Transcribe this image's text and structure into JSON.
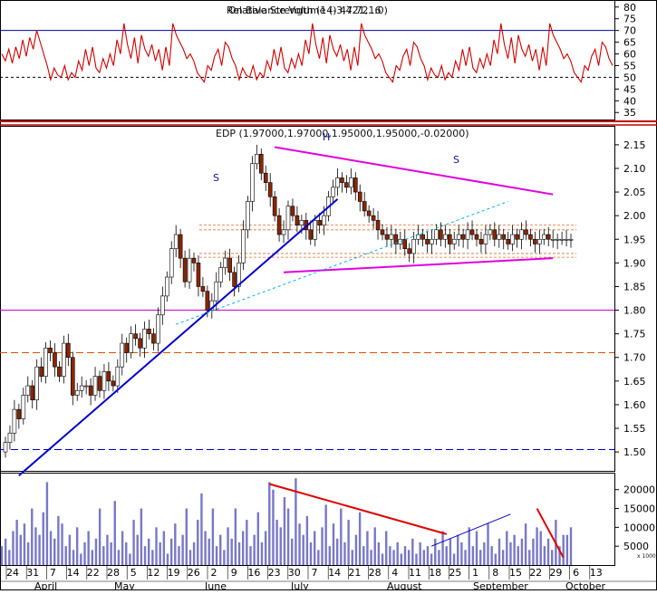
{
  "chart_data": [
    {
      "panel": "rsi",
      "type": "line",
      "title": "Relative Strength (14) 47.7216",
      "title_overlay": "On Balance Volume (-3,421,...0)",
      "y_ticks": [
        35,
        40,
        45,
        50,
        55,
        60,
        65,
        70,
        75,
        80
      ],
      "ylim": [
        32,
        83
      ],
      "reference_lines": [
        70,
        50
      ],
      "line_color": "#d00000",
      "series": [
        {
          "values": [
            60,
            57,
            62,
            56,
            63,
            58,
            66,
            59,
            67,
            62,
            70,
            65,
            60,
            55,
            49,
            54,
            51,
            50,
            55,
            49,
            52,
            50,
            57,
            53,
            62,
            55,
            63,
            54,
            52,
            58,
            54,
            60,
            55,
            66,
            60,
            73,
            64,
            58,
            67,
            56,
            68,
            62,
            59,
            64,
            57,
            62,
            53,
            63,
            55,
            73,
            68,
            65,
            62,
            58,
            60,
            57,
            52,
            50,
            48,
            55,
            53,
            59,
            62,
            55,
            65,
            63,
            58,
            55,
            49,
            54,
            51,
            50,
            55,
            49,
            52,
            50,
            57,
            53,
            62,
            55,
            63,
            54,
            52,
            58,
            54,
            60,
            55,
            66,
            60,
            73,
            64,
            58,
            67,
            56,
            68,
            62,
            59,
            64,
            57,
            62,
            53,
            63,
            55,
            73,
            68,
            65,
            62,
            58,
            60,
            57,
            52,
            50,
            48,
            55,
            53,
            59,
            62,
            55,
            65,
            63,
            58,
            55,
            49,
            54,
            51,
            50,
            55,
            49,
            52,
            50,
            57,
            53,
            62,
            55,
            63,
            54,
            52,
            58,
            54,
            60,
            55,
            66,
            60,
            73,
            64,
            58,
            67,
            56,
            68,
            62,
            59,
            64,
            57,
            62,
            53,
            63,
            55,
            73,
            68,
            65,
            62,
            58,
            60,
            57,
            52,
            50,
            48,
            55,
            53,
            59,
            62,
            55,
            65,
            63,
            58,
            55
          ]
        }
      ]
    },
    {
      "panel": "price",
      "type": "candlestick",
      "title": "EDP (1.97000,1.97000,1.95000,1.95000,-0.02000)",
      "y_ticks": [
        1.5,
        1.55,
        1.6,
        1.65,
        1.7,
        1.75,
        1.8,
        1.85,
        1.9,
        1.95,
        2.0,
        2.05,
        2.1,
        2.15
      ],
      "ylim": [
        1.46,
        2.19
      ],
      "annotations": [
        "S",
        "H",
        "S"
      ],
      "horizontal_lines": [
        {
          "y": 1.8,
          "color": "#cc00cc",
          "style": "solid"
        },
        {
          "y": 1.71,
          "color": "#e05000",
          "style": "dashed"
        },
        {
          "y": 1.505,
          "color": "#0000cc",
          "style": "dashed"
        }
      ],
      "trendlines": [
        {
          "from": [
            3,
            1.45
          ],
          "to": [
            74,
            2.035
          ],
          "color": "#0000cc"
        },
        {
          "from": [
            60,
            2.145
          ],
          "to": [
            122,
            2.045
          ],
          "color": "#e000e0"
        },
        {
          "from": [
            62,
            1.88
          ],
          "to": [
            122,
            1.91
          ],
          "color": "#e000e0"
        },
        {
          "from": [
            38,
            1.77
          ],
          "to": [
            112,
            2.03
          ],
          "color": "#00aaee",
          "style": "dashed"
        }
      ],
      "channel_lines": [
        1.97,
        1.98,
        1.912,
        1.92
      ],
      "up_color": "#ffffff",
      "down_color": "#8b2500",
      "series": [
        {
          "name": "EDP",
          "close": [
            1.52,
            1.54,
            1.59,
            1.57,
            1.62,
            1.64,
            1.61,
            1.68,
            1.66,
            1.72,
            1.71,
            1.68,
            1.66,
            1.73,
            1.7,
            1.62,
            1.63,
            1.64,
            1.64,
            1.62,
            1.66,
            1.63,
            1.67,
            1.65,
            1.64,
            1.68,
            1.73,
            1.71,
            1.75,
            1.74,
            1.72,
            1.76,
            1.75,
            1.73,
            1.79,
            1.83,
            1.87,
            1.93,
            1.96,
            1.91,
            1.86,
            1.91,
            1.9,
            1.85,
            1.84,
            1.8,
            1.82,
            1.86,
            1.89,
            1.91,
            1.88,
            1.85,
            1.9,
            1.97,
            2.03,
            2.11,
            2.13,
            2.09,
            2.07,
            2.04,
            2.0,
            1.96,
            1.97,
            2.02,
            2.0,
            1.98,
            1.99,
            1.97,
            1.95,
            1.99,
            1.98,
            2.0,
            2.04,
            2.06,
            2.08,
            2.07,
            2.06,
            2.08,
            2.05,
            2.03,
            2.01,
            2.0,
            1.99,
            1.97,
            1.96,
            1.95,
            1.96,
            1.94,
            1.95,
            1.93,
            1.92,
            1.95,
            1.96,
            1.95,
            1.94,
            1.95,
            1.97,
            1.95,
            1.96,
            1.94,
            1.95,
            1.96,
            1.95,
            1.97,
            1.96,
            1.95,
            1.94,
            1.96,
            1.97,
            1.95,
            1.96,
            1.95,
            1.94,
            1.96,
            1.95,
            1.97,
            1.96,
            1.95,
            1.94,
            1.95,
            1.96,
            1.95,
            1.95,
            1.95,
            1.95,
            1.95,
            1.95
          ]
        }
      ]
    },
    {
      "panel": "volume",
      "type": "bar",
      "y_ticks": [
        5000,
        10000,
        15000,
        20000
      ],
      "ylim": [
        0,
        24500
      ],
      "y_unit_label": "x 1000",
      "bar_color": "#7878c8",
      "trendlines": [
        {
          "from": [
            71,
            21500
          ],
          "to": [
            118,
            8200
          ],
          "color": "#e00000"
        },
        {
          "from": [
            114,
            5000
          ],
          "to": [
            135,
            13500
          ],
          "color": "#0000cc"
        },
        {
          "from": [
            142,
            15000
          ],
          "to": [
            149,
            2000
          ],
          "color": "#e00000"
        }
      ],
      "x_ticks": [
        "24",
        "31",
        "7",
        "14",
        "22",
        "28",
        "5",
        "12",
        "19",
        "26",
        "2",
        "9",
        "16",
        "23",
        "30",
        "7",
        "14",
        "21",
        "28",
        "4",
        "11",
        "18",
        "25",
        "1",
        "8",
        "15",
        "22",
        "29",
        "6",
        "13"
      ],
      "month_labels": [
        "April",
        "May",
        "June",
        "July",
        "August",
        "September",
        "October"
      ],
      "series": [
        {
          "values": [
            5000,
            7000,
            4000,
            9000,
            12000,
            8000,
            11000,
            6000,
            15000,
            10000,
            8000,
            14000,
            22000,
            9000,
            7000,
            13000,
            11000,
            5000,
            8000,
            4000,
            10000,
            3000,
            6000,
            9000,
            4000,
            7000,
            15000,
            5000,
            8000,
            6000,
            17000,
            4000,
            9000,
            6000,
            3000,
            12000,
            8000,
            15000,
            5000,
            7000,
            4000,
            10000,
            6000,
            9000,
            3000,
            7000,
            11000,
            5000,
            8000,
            15000,
            4000,
            6000,
            12000,
            19000,
            9000,
            7000,
            15000,
            5000,
            8000,
            4000,
            10000,
            7000,
            15000,
            6000,
            9000,
            12000,
            5000,
            8000,
            14000,
            6000,
            9000,
            22000,
            20000,
            12000,
            10000,
            18000,
            15000,
            7000,
            23000,
            11000,
            8000,
            13000,
            6000,
            9000,
            4000,
            10000,
            16000,
            5000,
            11000,
            7000,
            15000,
            6000,
            12000,
            4000,
            8000,
            14000,
            5000,
            9000,
            4000,
            10000,
            6000,
            3000,
            9000,
            5000,
            4000,
            6000,
            3000,
            5000,
            4000,
            7000,
            3000,
            6000,
            4000,
            5000,
            3000,
            7000,
            4000,
            9000,
            5000,
            7000,
            3000,
            8000,
            6000,
            4000,
            10000,
            5000,
            9000,
            4000,
            6000,
            11000,
            5000,
            3000,
            7000,
            4000,
            9000,
            6000,
            8000,
            5000,
            7000,
            11000,
            4000,
            7000,
            10000,
            9000,
            5000,
            7000,
            4000,
            12000,
            5000,
            8000,
            8000,
            10000
          ]
        }
      ]
    }
  ]
}
